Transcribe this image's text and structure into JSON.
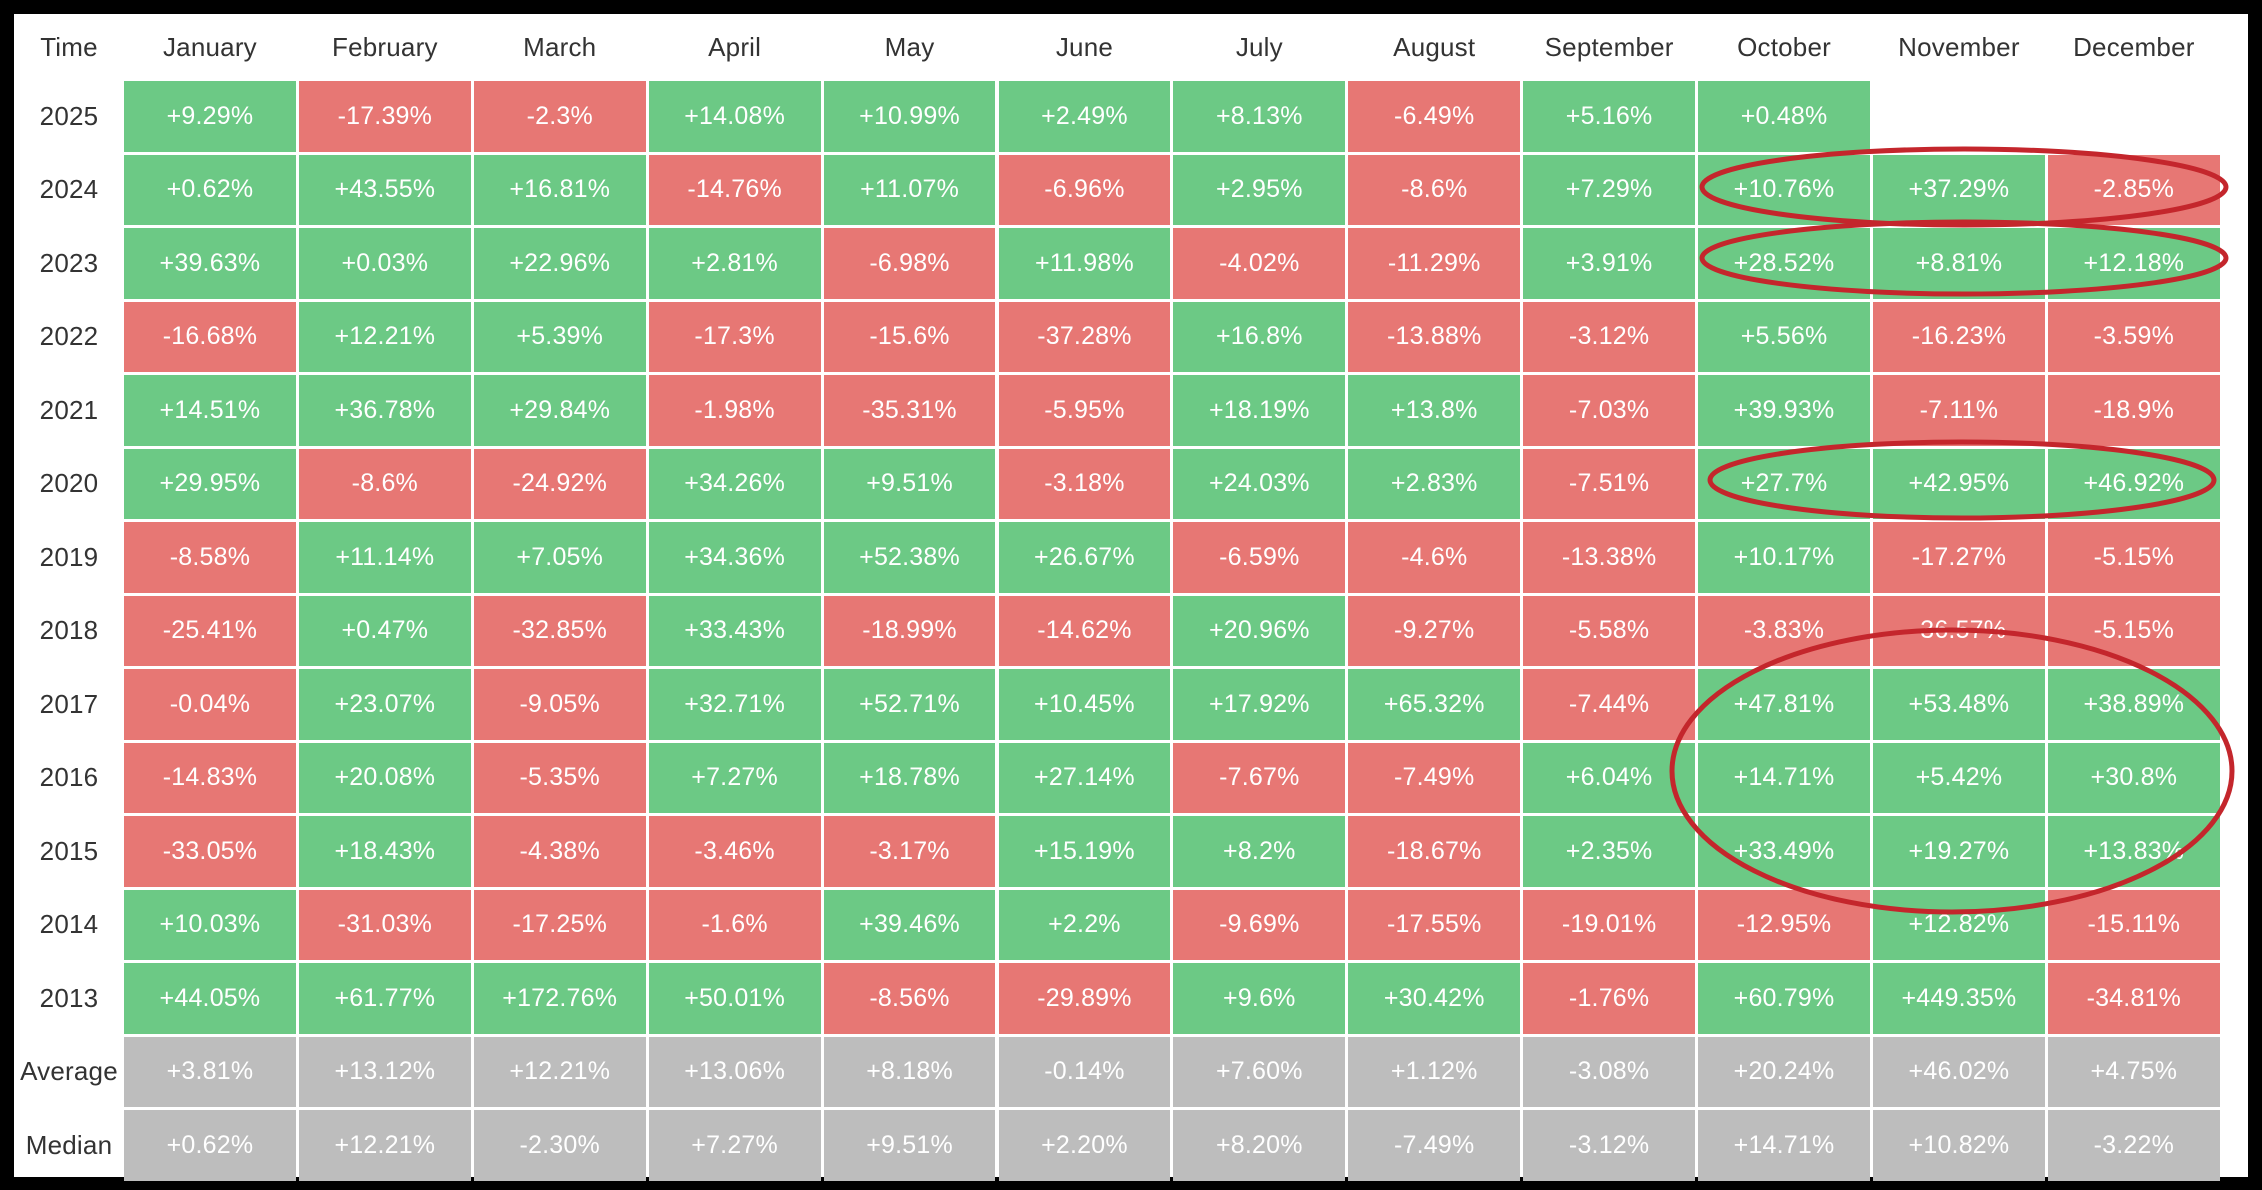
{
  "chart_data": {
    "type": "table",
    "title": "",
    "corner_label": "Time",
    "columns": [
      "January",
      "February",
      "March",
      "April",
      "May",
      "June",
      "July",
      "August",
      "September",
      "October",
      "November",
      "December"
    ],
    "rows": [
      {
        "label": "2025",
        "values": [
          "+9.29%",
          "-17.39%",
          "-2.3%",
          "+14.08%",
          "+10.99%",
          "+2.49%",
          "+8.13%",
          "-6.49%",
          "+5.16%",
          "+0.48%",
          null,
          null
        ]
      },
      {
        "label": "2024",
        "values": [
          "+0.62%",
          "+43.55%",
          "+16.81%",
          "-14.76%",
          "+11.07%",
          "-6.96%",
          "+2.95%",
          "-8.6%",
          "+7.29%",
          "+10.76%",
          "+37.29%",
          "-2.85%"
        ]
      },
      {
        "label": "2023",
        "values": [
          "+39.63%",
          "+0.03%",
          "+22.96%",
          "+2.81%",
          "-6.98%",
          "+11.98%",
          "-4.02%",
          "-11.29%",
          "+3.91%",
          "+28.52%",
          "+8.81%",
          "+12.18%"
        ]
      },
      {
        "label": "2022",
        "values": [
          "-16.68%",
          "+12.21%",
          "+5.39%",
          "-17.3%",
          "-15.6%",
          "-37.28%",
          "+16.8%",
          "-13.88%",
          "-3.12%",
          "+5.56%",
          "-16.23%",
          "-3.59%"
        ]
      },
      {
        "label": "2021",
        "values": [
          "+14.51%",
          "+36.78%",
          "+29.84%",
          "-1.98%",
          "-35.31%",
          "-5.95%",
          "+18.19%",
          "+13.8%",
          "-7.03%",
          "+39.93%",
          "-7.11%",
          "-18.9%"
        ]
      },
      {
        "label": "2020",
        "values": [
          "+29.95%",
          "-8.6%",
          "-24.92%",
          "+34.26%",
          "+9.51%",
          "-3.18%",
          "+24.03%",
          "+2.83%",
          "-7.51%",
          "+27.7%",
          "+42.95%",
          "+46.92%"
        ]
      },
      {
        "label": "2019",
        "values": [
          "-8.58%",
          "+11.14%",
          "+7.05%",
          "+34.36%",
          "+52.38%",
          "+26.67%",
          "-6.59%",
          "-4.6%",
          "-13.38%",
          "+10.17%",
          "-17.27%",
          "-5.15%"
        ]
      },
      {
        "label": "2018",
        "values": [
          "-25.41%",
          "+0.47%",
          "-32.85%",
          "+33.43%",
          "-18.99%",
          "-14.62%",
          "+20.96%",
          "-9.27%",
          "-5.58%",
          "-3.83%",
          "-36.57%",
          "-5.15%"
        ]
      },
      {
        "label": "2017",
        "values": [
          "-0.04%",
          "+23.07%",
          "-9.05%",
          "+32.71%",
          "+52.71%",
          "+10.45%",
          "+17.92%",
          "+65.32%",
          "-7.44%",
          "+47.81%",
          "+53.48%",
          "+38.89%"
        ]
      },
      {
        "label": "2016",
        "values": [
          "-14.83%",
          "+20.08%",
          "-5.35%",
          "+7.27%",
          "+18.78%",
          "+27.14%",
          "-7.67%",
          "-7.49%",
          "+6.04%",
          "+14.71%",
          "+5.42%",
          "+30.8%"
        ]
      },
      {
        "label": "2015",
        "values": [
          "-33.05%",
          "+18.43%",
          "-4.38%",
          "-3.46%",
          "-3.17%",
          "+15.19%",
          "+8.2%",
          "-18.67%",
          "+2.35%",
          "+33.49%",
          "+19.27%",
          "+13.83%"
        ]
      },
      {
        "label": "2014",
        "values": [
          "+10.03%",
          "-31.03%",
          "-17.25%",
          "-1.6%",
          "+39.46%",
          "+2.2%",
          "-9.69%",
          "-17.55%",
          "-19.01%",
          "-12.95%",
          "+12.82%",
          "-15.11%"
        ]
      },
      {
        "label": "2013",
        "values": [
          "+44.05%",
          "+61.77%",
          "+172.76%",
          "+50.01%",
          "-8.56%",
          "-29.89%",
          "+9.6%",
          "+30.42%",
          "-1.76%",
          "+60.79%",
          "+449.35%",
          "-34.81%"
        ]
      }
    ],
    "summary_rows": [
      {
        "label": "Average",
        "values": [
          "+3.81%",
          "+13.12%",
          "+12.21%",
          "+13.06%",
          "+8.18%",
          "-0.14%",
          "+7.60%",
          "+1.12%",
          "-3.08%",
          "+20.24%",
          "+46.02%",
          "+4.75%"
        ]
      },
      {
        "label": "Median",
        "values": [
          "+0.62%",
          "+12.21%",
          "-2.30%",
          "+7.27%",
          "+9.51%",
          "+2.20%",
          "+8.20%",
          "-7.49%",
          "-3.12%",
          "+14.71%",
          "+10.82%",
          "-3.22%"
        ]
      }
    ],
    "colors": {
      "positive": "#6cc985",
      "negative": "#e77774",
      "summary": "#bdbdbd",
      "annotation": "#c4262c"
    },
    "annotations": [
      {
        "shape": "ellipse",
        "covers_row": "2024",
        "covers_columns": [
          "October",
          "November",
          "December"
        ]
      },
      {
        "shape": "ellipse",
        "covers_row": "2023",
        "covers_columns": [
          "October",
          "November",
          "December"
        ]
      },
      {
        "shape": "ellipse",
        "covers_row": "2020",
        "covers_columns": [
          "October",
          "November",
          "December"
        ]
      },
      {
        "shape": "ellipse",
        "covers_rows": [
          "2017",
          "2016",
          "2015"
        ],
        "covers_columns": [
          "October",
          "November",
          "December"
        ]
      }
    ]
  }
}
